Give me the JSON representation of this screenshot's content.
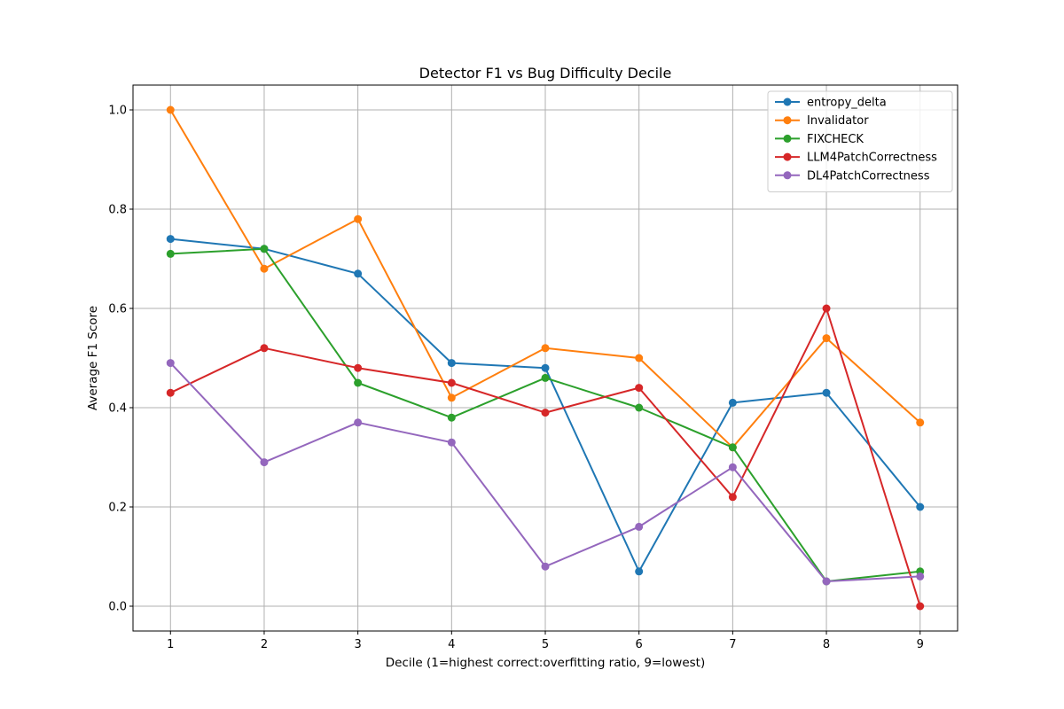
{
  "chart_data": {
    "type": "line",
    "title": "Detector F1 vs Bug Difficulty Decile",
    "xlabel": "Decile (1=highest correct:overfitting ratio, 9=lowest)",
    "ylabel": "Average F1 Score",
    "x": [
      1,
      2,
      3,
      4,
      5,
      6,
      7,
      8,
      9
    ],
    "xticks": [
      "1",
      "2",
      "3",
      "4",
      "5",
      "6",
      "7",
      "8",
      "9"
    ],
    "yticks": [
      "0.0",
      "0.2",
      "0.4",
      "0.6",
      "0.8",
      "1.0"
    ],
    "xlim": [
      0.6,
      9.4
    ],
    "ylim": [
      -0.05,
      1.05
    ],
    "grid": true,
    "legend_position": "top-right",
    "series": [
      {
        "name": "entropy_delta",
        "color": "#1f77b4",
        "values": [
          0.74,
          0.72,
          0.67,
          0.49,
          0.48,
          0.07,
          0.41,
          0.43,
          0.2
        ]
      },
      {
        "name": "Invalidator",
        "color": "#ff7f0e",
        "values": [
          1.0,
          0.68,
          0.78,
          0.42,
          0.52,
          0.5,
          0.32,
          0.54,
          0.37
        ]
      },
      {
        "name": "FIXCHECK",
        "color": "#2ca02c",
        "values": [
          0.71,
          0.72,
          0.45,
          0.38,
          0.46,
          0.4,
          0.32,
          0.05,
          0.07
        ]
      },
      {
        "name": "LLM4PatchCorrectness",
        "color": "#d62728",
        "values": [
          0.43,
          0.52,
          0.48,
          0.45,
          0.39,
          0.44,
          0.22,
          0.6,
          0.0
        ]
      },
      {
        "name": "DL4PatchCorrectness",
        "color": "#9467bd",
        "values": [
          0.49,
          0.29,
          0.37,
          0.33,
          0.08,
          0.16,
          0.28,
          0.05,
          0.06
        ]
      }
    ]
  }
}
